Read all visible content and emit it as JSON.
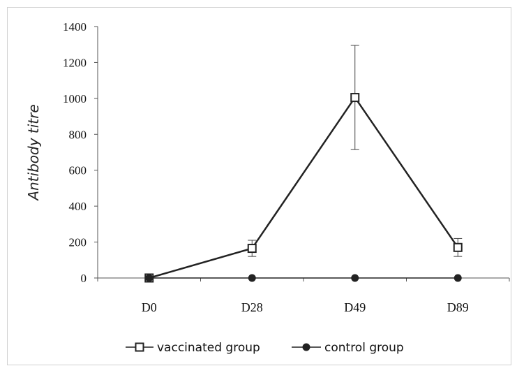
{
  "chart_data": {
    "type": "line",
    "categories": [
      "D0",
      "D28",
      "D49",
      "D89"
    ],
    "ylabel": "Antibody titre",
    "ylim": [
      0,
      1400
    ],
    "yticks": [
      0,
      200,
      400,
      600,
      800,
      1000,
      1200,
      1400
    ],
    "grid": false,
    "legend_position": "bottom",
    "series": [
      {
        "name": "vaccinated group",
        "marker": "open-square",
        "color": "#222222",
        "values": [
          0,
          165,
          1005,
          170
        ],
        "error": [
          0,
          45,
          290,
          50
        ]
      },
      {
        "name": "control group",
        "marker": "filled-circle",
        "color": "#222222",
        "values": [
          0,
          0,
          0,
          0
        ],
        "error": [
          0,
          0,
          0,
          0
        ]
      }
    ]
  }
}
